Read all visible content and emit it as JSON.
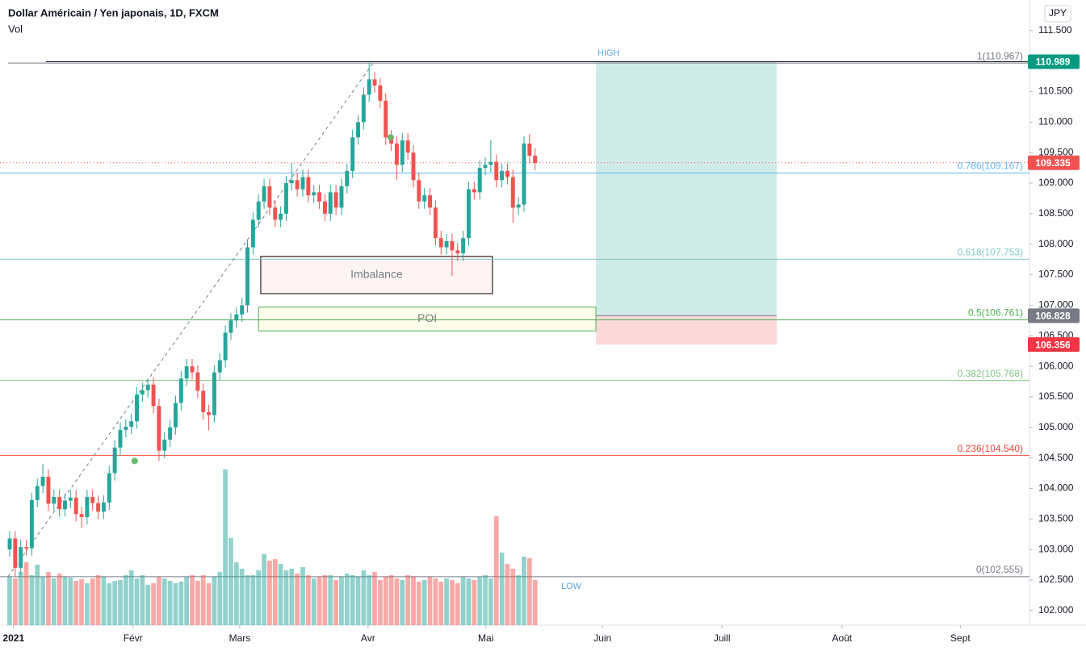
{
  "header": {
    "title": "Dollar Américain / Yen japonais, 1D, FXCM",
    "volume_label": "Vol",
    "currency": "JPY"
  },
  "chart_data": {
    "type": "candlestick",
    "up_color": "#26a69a",
    "down_color": "#ef5350",
    "open": [
      103.0,
      103.18,
      102.7,
      103.04,
      103.02,
      103.81,
      104.04,
      104.19,
      103.75,
      103.86,
      103.66,
      103.8,
      103.85,
      103.58,
      103.53,
      103.86,
      103.76,
      103.62,
      103.77,
      104.25,
      104.67,
      104.96,
      105.01,
      105.1,
      105.54,
      105.61,
      105.7,
      105.35,
      104.62,
      104.8,
      105.0,
      105.4,
      105.8,
      106.0,
      105.9,
      105.6,
      105.25,
      105.2,
      105.9,
      106.1,
      106.55,
      106.75,
      106.85,
      107.0,
      107.95,
      108.4,
      108.7,
      108.95,
      108.6,
      108.4,
      108.5,
      109.0,
      109.05,
      108.9,
      109.1,
      108.8,
      108.85,
      108.7,
      108.5,
      108.85,
      108.6,
      108.95,
      109.2,
      109.75,
      110.0,
      110.45,
      110.7,
      110.6,
      110.35,
      109.75,
      109.65,
      109.3,
      109.7,
      109.5,
      109.05,
      108.7,
      108.8,
      108.6,
      108.1,
      107.95,
      108.05,
      107.9,
      107.85,
      108.1,
      108.9,
      108.85,
      109.25,
      109.3,
      109.35,
      109.05,
      109.2,
      109.1,
      108.6,
      108.65,
      109.65,
      109.45
    ],
    "high": [
      103.3,
      103.3,
      103.16,
      103.16,
      103.93,
      104.16,
      104.4,
      104.31,
      103.98,
      103.98,
      103.92,
      103.97,
      103.97,
      103.7,
      103.98,
      103.98,
      103.88,
      103.89,
      104.37,
      104.79,
      105.08,
      105.13,
      105.22,
      105.66,
      105.73,
      105.8,
      105.82,
      105.47,
      104.92,
      105.12,
      105.52,
      105.92,
      106.12,
      106.12,
      106.02,
      105.72,
      105.37,
      106.02,
      106.22,
      106.67,
      106.87,
      106.97,
      107.12,
      108.07,
      108.52,
      108.82,
      109.07,
      109.07,
      108.72,
      108.62,
      109.12,
      109.33,
      109.17,
      109.22,
      109.22,
      108.97,
      108.97,
      108.82,
      108.97,
      108.97,
      109.07,
      109.32,
      109.87,
      110.12,
      110.57,
      110.97,
      110.82,
      110.72,
      110.47,
      109.87,
      109.77,
      109.82,
      109.82,
      109.62,
      109.17,
      108.92,
      108.92,
      108.72,
      108.22,
      108.17,
      108.17,
      108.02,
      108.22,
      109.02,
      109.02,
      109.37,
      109.42,
      109.7,
      109.47,
      109.32,
      109.32,
      109.22,
      108.77,
      109.77,
      109.8,
      109.57
    ],
    "low": [
      102.88,
      102.56,
      102.58,
      102.9,
      102.9,
      103.69,
      103.92,
      103.63,
      103.63,
      103.54,
      103.54,
      103.68,
      103.46,
      103.35,
      103.41,
      103.64,
      103.5,
      103.5,
      103.65,
      104.13,
      104.55,
      104.84,
      104.89,
      104.98,
      105.42,
      105.49,
      105.23,
      104.45,
      104.5,
      104.68,
      104.88,
      105.28,
      105.68,
      105.78,
      105.48,
      105.13,
      104.95,
      105.08,
      105.78,
      105.98,
      106.43,
      106.63,
      106.73,
      106.88,
      107.83,
      108.28,
      108.58,
      108.48,
      108.28,
      108.28,
      108.38,
      108.88,
      108.78,
      108.78,
      108.68,
      108.68,
      108.58,
      108.38,
      108.38,
      108.48,
      108.48,
      108.83,
      109.08,
      109.63,
      109.88,
      110.33,
      110.48,
      110.23,
      109.63,
      109.53,
      109.05,
      109.18,
      109.38,
      108.93,
      108.58,
      108.58,
      108.48,
      107.98,
      107.83,
      107.83,
      107.48,
      107.73,
      107.73,
      107.98,
      108.73,
      108.73,
      109.13,
      109.18,
      108.93,
      108.93,
      108.98,
      108.35,
      108.48,
      108.53,
      109.33,
      109.21
    ],
    "close": [
      103.18,
      102.7,
      103.04,
      103.02,
      103.81,
      104.04,
      104.19,
      103.75,
      103.86,
      103.66,
      103.8,
      103.85,
      103.58,
      103.53,
      103.86,
      103.76,
      103.62,
      103.77,
      104.25,
      104.67,
      104.96,
      105.01,
      105.1,
      105.54,
      105.61,
      105.7,
      105.35,
      104.62,
      104.8,
      105.0,
      105.4,
      105.8,
      106.0,
      105.9,
      105.6,
      105.25,
      105.2,
      105.9,
      106.1,
      106.55,
      106.75,
      106.85,
      107.0,
      107.95,
      108.4,
      108.7,
      108.95,
      108.6,
      108.4,
      108.5,
      109.0,
      109.05,
      108.9,
      109.1,
      108.8,
      108.85,
      108.7,
      108.5,
      108.85,
      108.6,
      108.95,
      109.2,
      109.75,
      110.0,
      110.45,
      110.7,
      110.6,
      110.35,
      109.75,
      109.65,
      109.3,
      109.7,
      109.5,
      109.05,
      108.7,
      108.8,
      108.6,
      108.1,
      107.95,
      108.05,
      107.9,
      107.85,
      108.1,
      108.9,
      108.85,
      109.25,
      109.3,
      109.35,
      109.05,
      109.2,
      109.1,
      108.6,
      108.65,
      109.65,
      109.45,
      109.33
    ],
    "volume": [
      60,
      58,
      66,
      78,
      62,
      75,
      60,
      66,
      58,
      64,
      60,
      59,
      55,
      57,
      52,
      58,
      62,
      60,
      52,
      55,
      56,
      62,
      68,
      58,
      62,
      50,
      52,
      60,
      58,
      55,
      52,
      54,
      60,
      62,
      55,
      62,
      52,
      60,
      66,
      193,
      108,
      78,
      70,
      62,
      62,
      68,
      88,
      80,
      82,
      76,
      68,
      70,
      64,
      72,
      62,
      58,
      60,
      62,
      62,
      56,
      60,
      64,
      62,
      60,
      68,
      62,
      66,
      56,
      60,
      62,
      58,
      56,
      62,
      60,
      54,
      56,
      60,
      58,
      54,
      58,
      56,
      52,
      60,
      58,
      56,
      60,
      62,
      58,
      135,
      90,
      76,
      70,
      62,
      85,
      83,
      56
    ],
    "xlim": [
      -1.75,
      184.4
    ],
    "xticks": [
      {
        "value": 0.7,
        "label": "2021"
      },
      {
        "value": 22.3,
        "label": "Févr"
      },
      {
        "value": 41.6,
        "label": "Mars"
      },
      {
        "value": 64.8,
        "label": "Avr"
      },
      {
        "value": 86.1,
        "label": "Mai"
      },
      {
        "value": 107.2,
        "label": "Juin"
      },
      {
        "value": 128.8,
        "label": "Juill"
      },
      {
        "value": 150.5,
        "label": "Août"
      },
      {
        "value": 171.9,
        "label": "Sept"
      }
    ],
    "ylim": [
      101.76,
      112.0
    ],
    "yticks": [
      {
        "value": 111.5,
        "label": "111.500"
      },
      {
        "value": 111.0,
        "label": "111.000"
      },
      {
        "value": 110.5,
        "label": "110.500"
      },
      {
        "value": 110.0,
        "label": "110.000"
      },
      {
        "value": 109.5,
        "label": "109.500"
      },
      {
        "value": 109.0,
        "label": "109.000"
      },
      {
        "value": 108.5,
        "label": "108.500"
      },
      {
        "value": 108.0,
        "label": "108.000"
      },
      {
        "value": 107.5,
        "label": "107.500"
      },
      {
        "value": 107.0,
        "label": "107.000"
      },
      {
        "value": 106.5,
        "label": "106.500"
      },
      {
        "value": 106.0,
        "label": "106.000"
      },
      {
        "value": 105.5,
        "label": "105.500"
      },
      {
        "value": 105.0,
        "label": "105.000"
      },
      {
        "value": 104.5,
        "label": "104.500"
      },
      {
        "value": 104.0,
        "label": "104.000"
      },
      {
        "value": 103.5,
        "label": "103.500"
      },
      {
        "value": 103.0,
        "label": "103.000"
      },
      {
        "value": 102.5,
        "label": "102.500"
      },
      {
        "value": 102.0,
        "label": "102.000"
      }
    ],
    "fib_levels": [
      {
        "value": 110.967,
        "label": "1(110.967)",
        "color": "#787b86"
      },
      {
        "value": 109.167,
        "label": "0.786(109.167)",
        "color": "#64b5f6"
      },
      {
        "value": 107.753,
        "label": "0.618(107.753)",
        "color": "#80c8c8"
      },
      {
        "value": 106.761,
        "label": "0.5(106.761)",
        "color": "#4caf50"
      },
      {
        "value": 105.768,
        "label": "0.382(105.768)",
        "color": "#81c784"
      },
      {
        "value": 104.54,
        "label": "0.236(104.540)",
        "color": "#f44336"
      },
      {
        "value": 102.555,
        "label": "0(102.555)",
        "color": "#787b86"
      }
    ],
    "trend_x": [
      -0.3,
      65.7
    ],
    "markers": {
      "x": [
        22.6,
        68.9
      ],
      "y": [
        104.45,
        109.75
      ],
      "color": "#66bb6a"
    },
    "zones": [
      {
        "label": "Imbalance",
        "range": [
          107.19,
          107.8
        ],
        "xrange": [
          45.4,
          87.3
        ],
        "color": "#000000"
      },
      {
        "label": "POI",
        "range": [
          106.58,
          106.97
        ],
        "xrange": [
          45.0,
          106.0
        ],
        "color": "#4caf50"
      }
    ],
    "position": {
      "target": 110.989,
      "entry": 106.828,
      "stop": 106.356,
      "xrange": [
        106.0,
        138.7
      ]
    },
    "last_price": 109.335,
    "annotations": {
      "high": "HIGH",
      "low": "LOW"
    }
  }
}
